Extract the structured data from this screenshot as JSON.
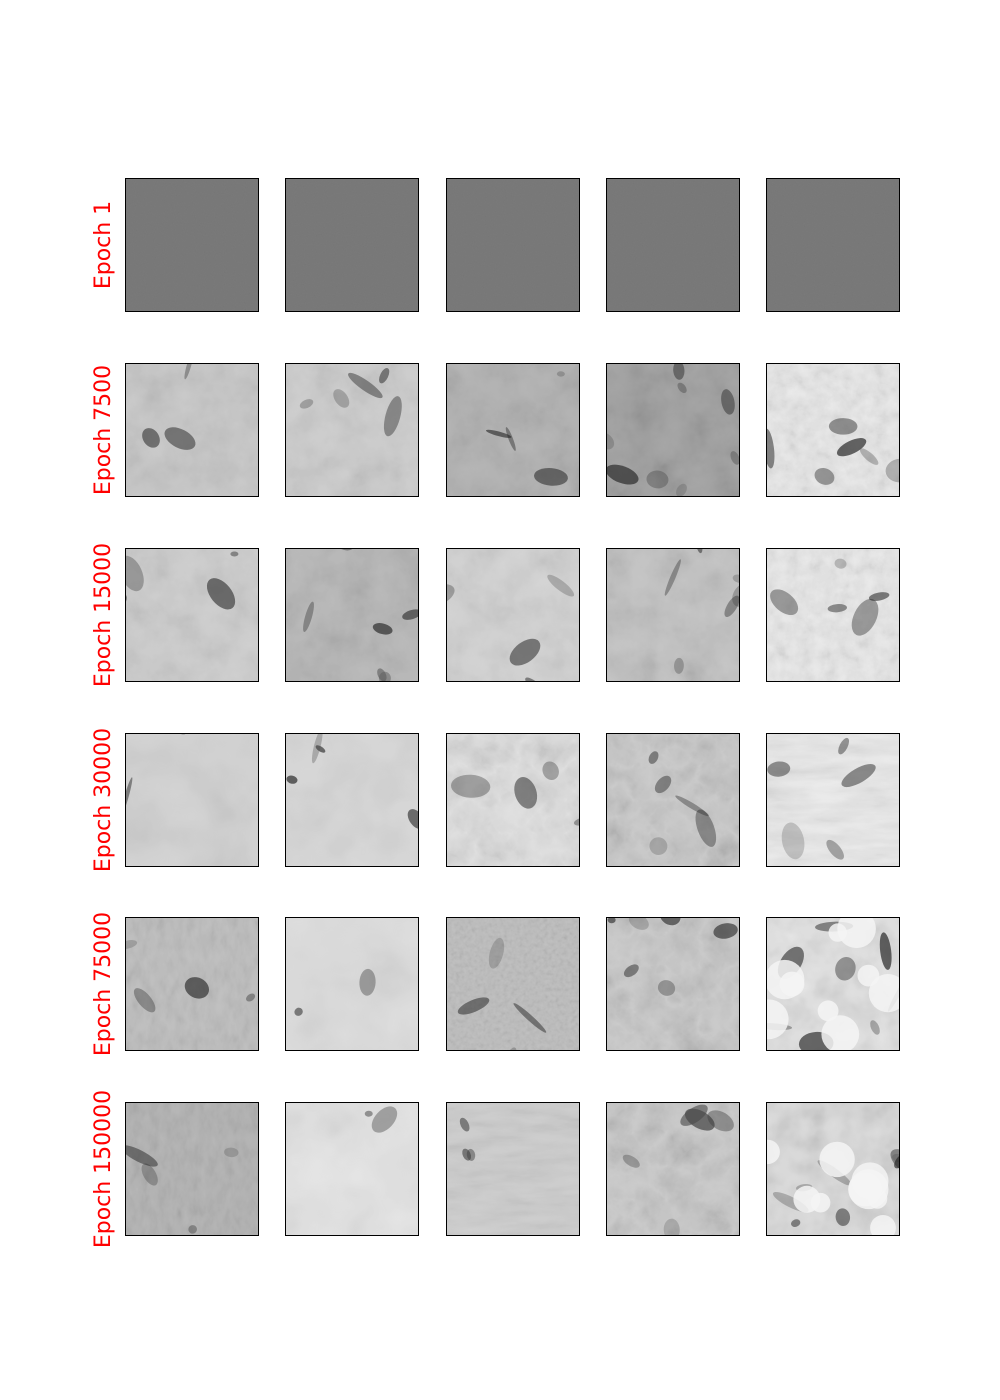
{
  "figure": {
    "label_color": "#ff0000",
    "columns": 5,
    "rows": [
      {
        "label": "Epoch 1",
        "tiles": [
          {
            "texture": "uniform-gray-noise",
            "base_gray": 0.48,
            "dark_coverage": 0.0
          },
          {
            "texture": "uniform-gray-noise",
            "base_gray": 0.48,
            "dark_coverage": 0.0
          },
          {
            "texture": "uniform-gray-noise",
            "base_gray": 0.48,
            "dark_coverage": 0.0
          },
          {
            "texture": "uniform-gray-noise",
            "base_gray": 0.48,
            "dark_coverage": 0.0
          },
          {
            "texture": "uniform-gray-noise",
            "base_gray": 0.48,
            "dark_coverage": 0.0
          }
        ]
      },
      {
        "label": "Epoch 7500",
        "tiles": [
          {
            "texture": "cloudy-gray",
            "base_gray": 0.8,
            "dark_coverage": 0.35
          },
          {
            "texture": "cloudy-gray",
            "base_gray": 0.82,
            "dark_coverage": 0.35
          },
          {
            "texture": "cloudy-gray",
            "base_gray": 0.72,
            "dark_coverage": 0.45
          },
          {
            "texture": "cloudy-gray",
            "base_gray": 0.66,
            "dark_coverage": 0.55
          },
          {
            "texture": "speckled-light",
            "base_gray": 0.92,
            "dark_coverage": 0.4
          }
        ]
      },
      {
        "label": "Epoch 15000",
        "tiles": [
          {
            "texture": "cloudy-gray",
            "base_gray": 0.82,
            "dark_coverage": 0.3
          },
          {
            "texture": "cloudy-gray",
            "base_gray": 0.74,
            "dark_coverage": 0.45
          },
          {
            "texture": "cloudy-gray",
            "base_gray": 0.84,
            "dark_coverage": 0.25
          },
          {
            "texture": "cloudy-gray",
            "base_gray": 0.78,
            "dark_coverage": 0.4
          },
          {
            "texture": "speckled-light",
            "base_gray": 0.92,
            "dark_coverage": 0.35
          }
        ]
      },
      {
        "label": "Epoch 30000",
        "tiles": [
          {
            "texture": "smooth-light",
            "base_gray": 0.84,
            "dark_coverage": 0.15
          },
          {
            "texture": "smooth-light",
            "base_gray": 0.86,
            "dark_coverage": 0.25
          },
          {
            "texture": "veined-light",
            "base_gray": 0.88,
            "dark_coverage": 0.25
          },
          {
            "texture": "veined-dark",
            "base_gray": 0.8,
            "dark_coverage": 0.45
          },
          {
            "texture": "streaked-light",
            "base_gray": 0.93,
            "dark_coverage": 0.35
          }
        ]
      },
      {
        "label": "Epoch 75000",
        "tiles": [
          {
            "texture": "cross-hatched",
            "base_gray": 0.76,
            "dark_coverage": 0.25
          },
          {
            "texture": "smooth-light",
            "base_gray": 0.88,
            "dark_coverage": 0.15
          },
          {
            "texture": "fine-noise",
            "base_gray": 0.76,
            "dark_coverage": 0.25
          },
          {
            "texture": "veined-dark",
            "base_gray": 0.8,
            "dark_coverage": 0.45
          },
          {
            "texture": "blotchy-contrast",
            "base_gray": 0.9,
            "dark_coverage": 0.55
          }
        ]
      },
      {
        "label": "Epoch 150000",
        "tiles": [
          {
            "texture": "cross-hatched",
            "base_gray": 0.72,
            "dark_coverage": 0.35
          },
          {
            "texture": "smooth-light",
            "base_gray": 0.9,
            "dark_coverage": 0.15
          },
          {
            "texture": "streaked-gray",
            "base_gray": 0.82,
            "dark_coverage": 0.3
          },
          {
            "texture": "veined-dark",
            "base_gray": 0.8,
            "dark_coverage": 0.4
          },
          {
            "texture": "blotchy-contrast",
            "base_gray": 0.88,
            "dark_coverage": 0.6
          }
        ]
      }
    ]
  }
}
